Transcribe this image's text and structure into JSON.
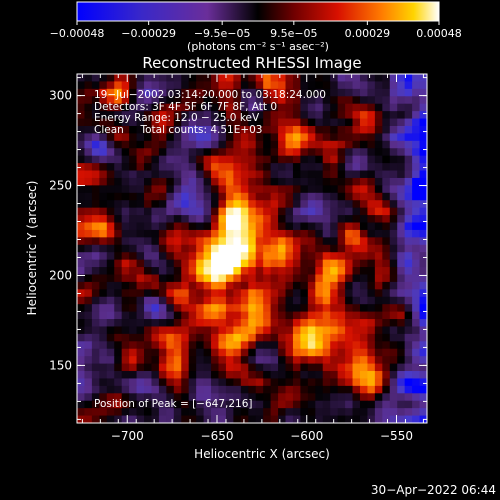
{
  "chart_data": {
    "type": "heatmap",
    "title": "Reconstructed RHESSI Image",
    "xlabel": "Heliocentric X (arcsec)",
    "ylabel": "Heliocentric Y (arcsec)",
    "xlim": [
      -728,
      -533
    ],
    "ylim": [
      118,
      312
    ],
    "xticks": [
      -700,
      -650,
      -600,
      -550
    ],
    "yticks": [
      150,
      200,
      250,
      300
    ],
    "xtick_labels": [
      "−700",
      "−650",
      "−600",
      "−550"
    ],
    "ytick_labels": [
      "150",
      "200",
      "250",
      "300"
    ],
    "peak": {
      "x": -647,
      "y": 216
    },
    "colorbar": {
      "range": [
        -0.00048,
        0.00048
      ],
      "ticks": [
        -0.00048,
        -0.00029,
        -9.5e-05,
        9.5e-05,
        0.00029,
        0.00048
      ],
      "tick_labels": [
        "−0.00048",
        "−0.00029",
        "−9.5e−05",
        "9.5e−05",
        "0.00029",
        "0.00048"
      ],
      "unit_label": "(photons cm⁻² s⁻¹ asec⁻²)"
    },
    "annotations": [
      "19−Jul−2002 03:14:20.000 to 03:18:24.000",
      "Detectors: 3F 4F 5F 6F 7F 8F, Att 0",
      "Energy Range: 12.0 − 25.0 keV",
      "Clean     Total counts: 4.51E+03"
    ],
    "peak_text": "Position of Peak = [−647,216]",
    "grid": false,
    "colors": {
      "scale": [
        "#0000ff",
        "#4a3cc8",
        "#5a2e8c",
        "#2a1440",
        "#000000",
        "#6a0000",
        "#d41000",
        "#ff7a00",
        "#ffd400",
        "#ffffff"
      ]
    }
  },
  "footer": {
    "timestamp": "30−Apr−2022 06:44"
  }
}
